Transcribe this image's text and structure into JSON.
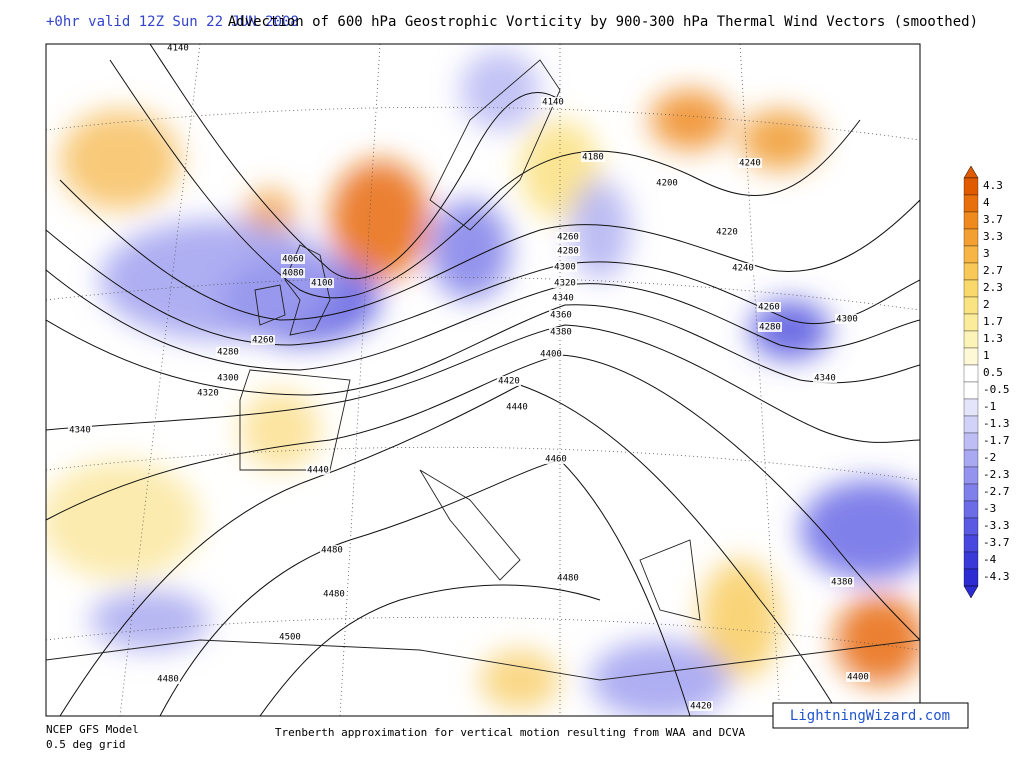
{
  "header": {
    "valid": "+0hr valid 12Z Sun 22 JUN 2008",
    "title": "Advection of 600 hPa Geostrophic Vorticity by 900-300 hPa Thermal Wind Vectors (smoothed)"
  },
  "map": {
    "contour_labels": [
      "4140",
      "4140",
      "4180",
      "4200",
      "4240",
      "4220",
      "4240",
      "4260",
      "4280",
      "4300",
      "4340",
      "4260",
      "4280",
      "4300",
      "4320",
      "4340",
      "4360",
      "4380",
      "4400",
      "4420",
      "4440",
      "4460",
      "4060",
      "4080",
      "4100",
      "4260",
      "4280",
      "4300",
      "4320",
      "4340",
      "4440",
      "4480",
      "4480",
      "4480",
      "4500",
      "4480",
      "4380",
      "4400",
      "4420"
    ]
  },
  "colorbar": {
    "labels": [
      "4.3",
      "4",
      "3.7",
      "3.3",
      "3",
      "2.7",
      "2.3",
      "2",
      "1.7",
      "1.3",
      "1",
      "0.5",
      "-0.5",
      "-1",
      "-1.3",
      "-1.7",
      "-2",
      "-2.3",
      "-2.7",
      "-3",
      "-3.3",
      "-3.7",
      "-4",
      "-4.3"
    ],
    "colors": [
      "#e05a00",
      "#e8700c",
      "#ef8a1e",
      "#f3a032",
      "#f6b545",
      "#f8c858",
      "#f9d86c",
      "#fae382",
      "#fbec9c",
      "#fcf3b8",
      "#fdf8d6",
      "#ffffff",
      "#ffffff",
      "#e4e4fb",
      "#d2d2f8",
      "#bebef5",
      "#a9a9f2",
      "#9494ee",
      "#8080ea",
      "#6c6ce6",
      "#5a5ae2",
      "#4848de",
      "#3a3ad8",
      "#2c2cd2"
    ]
  },
  "footer": {
    "model": "NCEP GFS Model",
    "grid": "0.5 deg grid",
    "caption": "Trenberth approximation for vertical motion resulting from WAA and DCVA",
    "brand": "LightningWizard.com"
  }
}
